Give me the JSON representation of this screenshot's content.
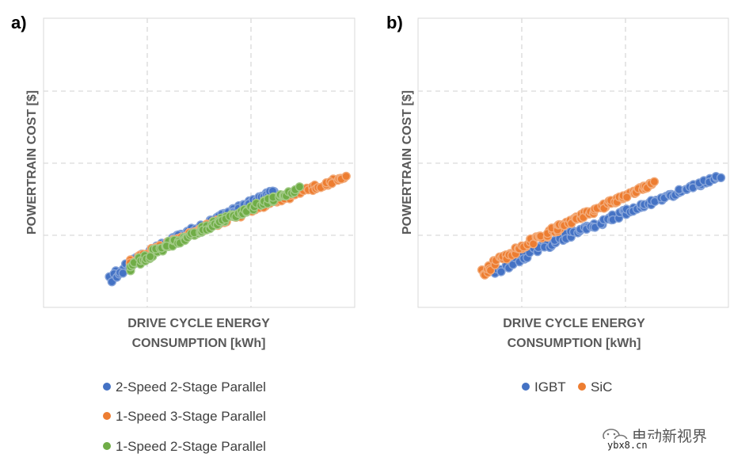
{
  "chart_data": [
    {
      "panel_label": "a)",
      "type": "scatter",
      "xlabel_lines": [
        "DRIVE CYCLE ENERGY",
        "CONSUMPTION [kWh]"
      ],
      "ylabel": "POWERTRAIN COST [$]",
      "xlim": [
        0,
        1
      ],
      "ylim": [
        0,
        1
      ],
      "x_tick_labels": [],
      "y_tick_labels": [],
      "grid": true,
      "legend_position": "bottom",
      "series": [
        {
          "name": "2-Speed 2-Stage Parallel",
          "color": "#4472C4",
          "x_range": [
            0.22,
            0.74
          ],
          "y_start": 0.1,
          "y_end": 0.4,
          "curvature": 0.85
        },
        {
          "name": "1-Speed 3-Stage Parallel",
          "color": "#ED7D31",
          "x_range": [
            0.27,
            0.97
          ],
          "y_start": 0.14,
          "y_end": 0.45,
          "curvature": 0.8
        },
        {
          "name": "1-Speed 2-Stage Parallel",
          "color": "#70AD47",
          "x_range": [
            0.28,
            0.82
          ],
          "y_start": 0.14,
          "y_end": 0.41,
          "curvature": 0.85
        }
      ]
    },
    {
      "panel_label": "b)",
      "type": "scatter",
      "xlabel_lines": [
        "DRIVE CYCLE ENERGY",
        "CONSUMPTION [kWh]"
      ],
      "ylabel": "POWERTRAIN COST [$]",
      "xlim": [
        0,
        1
      ],
      "ylim": [
        0,
        1
      ],
      "x_tick_labels": [],
      "y_tick_labels": [],
      "grid": true,
      "legend_position": "bottom",
      "series": [
        {
          "name": "IGBT",
          "color": "#4472C4",
          "x_range": [
            0.25,
            0.97
          ],
          "y_start": 0.12,
          "y_end": 0.45,
          "curvature": 0.85
        },
        {
          "name": "SiC",
          "color": "#ED7D31",
          "x_range": [
            0.21,
            0.76
          ],
          "y_start": 0.12,
          "y_end": 0.43,
          "curvature": 0.85
        }
      ]
    }
  ],
  "watermark": {
    "text": "电动新视界",
    "url": "ybx8.cn"
  }
}
